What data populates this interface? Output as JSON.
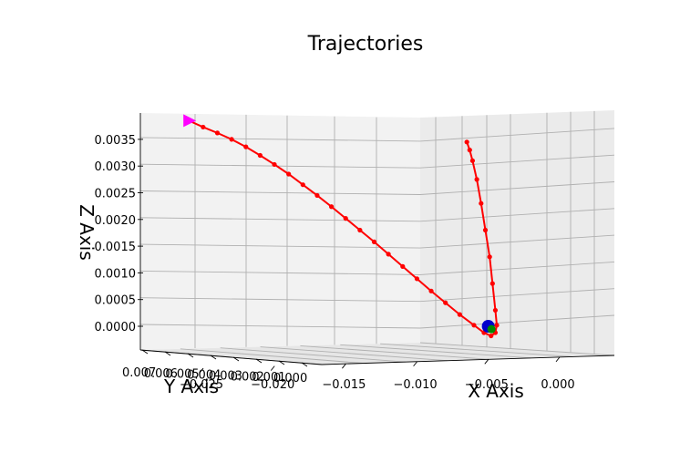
{
  "chart_data": {
    "type": "line3d",
    "title": "Trajectories",
    "xlabel": "X Axis",
    "ylabel": "Y Axis",
    "zlabel": "Z Axis",
    "xlim": [
      -0.027,
      0.0025
    ],
    "ylim": [
      0.0,
      0.0072
    ],
    "zlim": [
      -0.0004,
      0.0039
    ],
    "grid": true,
    "x_ticks": [
      "−0.025",
      "−0.020",
      "−0.015",
      "−0.010",
      "−0.005",
      "0.000"
    ],
    "y_ticks": [
      "0.007",
      "0.006",
      "0.005",
      "0.004",
      "0.003",
      "0.002",
      "0.001",
      "0.000"
    ],
    "z_ticks": [
      "0.0035",
      "0.0030",
      "0.0025",
      "0.0020",
      "0.0015",
      "0.0010",
      "0.0005",
      "0.0000"
    ],
    "series": [
      {
        "color": "#ff0000",
        "marker": "circle",
        "points": [
          {
            "x": -0.0255,
            "y": 0.0,
            "z": 0.00385
          },
          {
            "x": -0.0245,
            "y": 0.0,
            "z": 0.00373
          },
          {
            "x": -0.0235,
            "y": 0.0,
            "z": 0.00362
          },
          {
            "x": -0.0225,
            "y": 0.0,
            "z": 0.0035
          },
          {
            "x": -0.0215,
            "y": 0.0,
            "z": 0.00336
          },
          {
            "x": -0.0205,
            "y": 0.0,
            "z": 0.0032
          },
          {
            "x": -0.0195,
            "y": 0.0,
            "z": 0.00303
          },
          {
            "x": -0.0185,
            "y": 0.0,
            "z": 0.00285
          },
          {
            "x": -0.0175,
            "y": 0.0,
            "z": 0.00265
          },
          {
            "x": -0.0165,
            "y": 0.0,
            "z": 0.00245
          },
          {
            "x": -0.0155,
            "y": 0.0,
            "z": 0.00224
          },
          {
            "x": -0.0145,
            "y": 0.0,
            "z": 0.00202
          },
          {
            "x": -0.0135,
            "y": 0.0,
            "z": 0.0018
          },
          {
            "x": -0.0125,
            "y": 0.0,
            "z": 0.00158
          },
          {
            "x": -0.0115,
            "y": 0.0,
            "z": 0.00135
          },
          {
            "x": -0.0105,
            "y": 0.0,
            "z": 0.00112
          },
          {
            "x": -0.0095,
            "y": 0.0,
            "z": 0.00089
          },
          {
            "x": -0.0085,
            "y": 0.0,
            "z": 0.00066
          },
          {
            "x": -0.0075,
            "y": 0.0,
            "z": 0.00044
          },
          {
            "x": -0.0065,
            "y": 0.0,
            "z": 0.00022
          },
          {
            "x": -0.0055,
            "y": 0.0,
            "z": 2e-05
          },
          {
            "x": -0.0048,
            "y": 0.0,
            "z": -0.00012
          },
          {
            "x": -0.0043,
            "y": 0.0,
            "z": -0.00018
          },
          {
            "x": -0.004,
            "y": 0.0,
            "z": -0.00012
          },
          {
            "x": -0.0039,
            "y": 0.0,
            "z": 2e-05
          },
          {
            "x": -0.004,
            "y": 0.0,
            "z": 0.0003
          },
          {
            "x": -0.0042,
            "y": 0.0,
            "z": 0.0008
          },
          {
            "x": -0.0044,
            "y": 0.0,
            "z": 0.0013
          },
          {
            "x": -0.0047,
            "y": 0.0,
            "z": 0.0018
          },
          {
            "x": -0.005,
            "y": 0.0,
            "z": 0.0023
          },
          {
            "x": -0.0053,
            "y": 0.0,
            "z": 0.00275
          },
          {
            "x": -0.0056,
            "y": 0.0,
            "z": 0.0031
          },
          {
            "x": -0.0058,
            "y": 0.0,
            "z": 0.0033
          },
          {
            "x": -0.006,
            "y": 0.0,
            "z": 0.00345
          }
        ]
      }
    ],
    "markers": [
      {
        "shape": "triangle-right",
        "color": "#ff00ff",
        "x": -0.0255,
        "y": 0.0,
        "z": 0.00385
      },
      {
        "shape": "circle",
        "color": "#0000cc",
        "x": -0.0045,
        "y": 0.0,
        "z": 0.0
      },
      {
        "shape": "circle",
        "color": "#008800",
        "x": -0.0044,
        "y": 0.0,
        "z": -2e-05
      }
    ]
  }
}
